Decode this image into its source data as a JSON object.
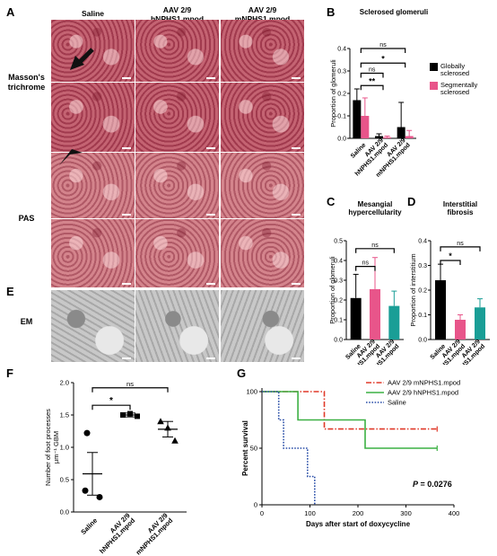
{
  "panel_labels": {
    "A": "A",
    "B": "B",
    "C": "C",
    "D": "D",
    "E": "E",
    "F": "F",
    "G": "G"
  },
  "micrographs": {
    "column_headers": [
      "Saline",
      "AAV 2/9\nhNPHS1.mpod",
      "AAV 2/9\nmNPHS1.mpod"
    ],
    "row_labels": {
      "masson": "Masson's\ntrichrome",
      "pas": "PAS",
      "em": "EM"
    },
    "masson_color": "#b5475a",
    "pas_color": "#c9707b",
    "em_color": "#bdbdbd"
  },
  "chart_data": [
    {
      "id": "B",
      "type": "bar",
      "title": "Sclerosed glomeruli",
      "ylabel": "Proportion of glomeruli",
      "ylim": [
        0,
        0.4
      ],
      "yticks": [
        "0.0",
        "0.1",
        "0.2",
        "0.3",
        "0.4"
      ],
      "categories": [
        "Saline",
        "AAV 2/9\nhNPHS1.mpod",
        "AAV 2/9\nmNPHS1.mpod"
      ],
      "series": [
        {
          "name": "Globally\nsclerosed",
          "color": "#000000",
          "values": [
            0.17,
            0.01,
            0.05
          ],
          "errors": [
            0.05,
            0.01,
            0.11
          ]
        },
        {
          "name": "Segmentally\nsclerosed",
          "color": "#e8558a",
          "values": [
            0.1,
            0.005,
            0.01
          ],
          "errors": [
            0.08,
            0.005,
            0.025
          ]
        }
      ],
      "significance": [
        {
          "label": "ns",
          "from": 0,
          "to": 2,
          "level": 0.4
        },
        {
          "label": "*",
          "from": 0,
          "to": 2,
          "level": 0.335
        },
        {
          "label": "ns",
          "from": 0,
          "to": 1,
          "level": 0.29
        },
        {
          "label": "**",
          "from": 0,
          "to": 1,
          "level": 0.235
        }
      ]
    },
    {
      "id": "C",
      "type": "bar",
      "title": "Mesangial\nhypercellularity",
      "ylabel": "Proportion of glomeruli",
      "ylim": [
        0,
        0.5
      ],
      "yticks": [
        "0.0",
        "0.1",
        "0.2",
        "0.3",
        "0.4",
        "0.5"
      ],
      "categories": [
        "Saline",
        "AAV 2/9\nhNPHS1.mpod",
        "AAV 2/9\nmNPHS1.mpod"
      ],
      "series": [
        {
          "values": [
            0.21,
            0.255,
            0.17
          ],
          "errors": [
            0.12,
            0.16,
            0.075
          ],
          "colors": [
            "#000000",
            "#e8558a",
            "#1a9e96"
          ]
        }
      ],
      "significance": [
        {
          "label": "ns",
          "from": 0,
          "to": 2,
          "level": 0.46
        },
        {
          "label": "ns",
          "from": 0,
          "to": 1,
          "level": 0.37
        }
      ]
    },
    {
      "id": "D",
      "type": "bar",
      "title": "Interstitial\nfibrosis",
      "ylabel": "Proportion of interstitium",
      "ylim": [
        0,
        0.4
      ],
      "yticks": [
        "0.0",
        "0.1",
        "0.2",
        "0.3",
        "0.4"
      ],
      "categories": [
        "Saline",
        "AAV 2/9\nhNPHS1.mpod",
        "AAV 2/9\nmNPHS1.mpod"
      ],
      "series": [
        {
          "values": [
            0.24,
            0.08,
            0.13
          ],
          "errors": [
            0.065,
            0.02,
            0.035
          ],
          "colors": [
            "#000000",
            "#e8558a",
            "#1a9e96"
          ]
        }
      ],
      "significance": [
        {
          "label": "ns",
          "from": 0,
          "to": 2,
          "level": 0.375
        },
        {
          "label": "*",
          "from": 0,
          "to": 1,
          "level": 0.32
        }
      ]
    },
    {
      "id": "F",
      "type": "scatter",
      "ylabel": "Number of foot processes\nμm⁻¹ GBM",
      "ylim": [
        0,
        2.0
      ],
      "yticks": [
        "0.0",
        "0.5",
        "1.0",
        "1.5",
        "2.0"
      ],
      "categories": [
        "Saline",
        "AAV 2/9\nhNPHS1.mpod",
        "AAV 2/9\nmNPHS1.mpod"
      ],
      "groups": [
        {
          "marker": "circle",
          "points": [
            1.22,
            0.33,
            0.23
          ],
          "mean": 0.59,
          "sem": 0.33
        },
        {
          "marker": "square",
          "points": [
            1.5,
            1.52,
            1.48
          ],
          "mean": 1.5,
          "sem": 0.03
        },
        {
          "marker": "triangle",
          "points": [
            1.4,
            1.3,
            1.1
          ],
          "mean": 1.28,
          "sem": 0.12
        }
      ],
      "significance": [
        {
          "label": "ns",
          "from": 0,
          "to": 2,
          "level": 1.92
        },
        {
          "label": "*",
          "from": 0,
          "to": 1,
          "level": 1.65
        }
      ]
    },
    {
      "id": "G",
      "type": "line",
      "xlabel": "Days after start of doxycycline",
      "ylabel": "Percent survival",
      "xlim": [
        0,
        400
      ],
      "ylim": [
        0,
        100
      ],
      "xticks": [
        "0",
        "100",
        "200",
        "300",
        "400"
      ],
      "yticks": [
        "0",
        "50",
        "100"
      ],
      "pvalue_label": "P",
      "pvalue_text": " = 0.0276",
      "series": [
        {
          "name": "AAV 2/9 mNPHS1.mpod",
          "color": "#e03a2a",
          "dash": "6,2,1.5,2",
          "steps": [
            [
              0,
              100
            ],
            [
              130,
              100
            ],
            [
              130,
              67
            ],
            [
              365,
              67
            ]
          ]
        },
        {
          "name": "AAV 2/9 hNPHS1.mpod",
          "color": "#3cb043",
          "dash": "",
          "steps": [
            [
              0,
              100
            ],
            [
              75,
              100
            ],
            [
              75,
              75
            ],
            [
              215,
              75
            ],
            [
              215,
              50
            ],
            [
              365,
              50
            ]
          ]
        },
        {
          "name": "Saline",
          "color": "#2a4fa8",
          "dash": "1.6,1.6",
          "steps": [
            [
              0,
              100
            ],
            [
              35,
              100
            ],
            [
              35,
              75
            ],
            [
              45,
              75
            ],
            [
              45,
              50
            ],
            [
              95,
              50
            ],
            [
              95,
              25
            ],
            [
              110,
              25
            ],
            [
              110,
              0
            ]
          ]
        }
      ]
    }
  ]
}
